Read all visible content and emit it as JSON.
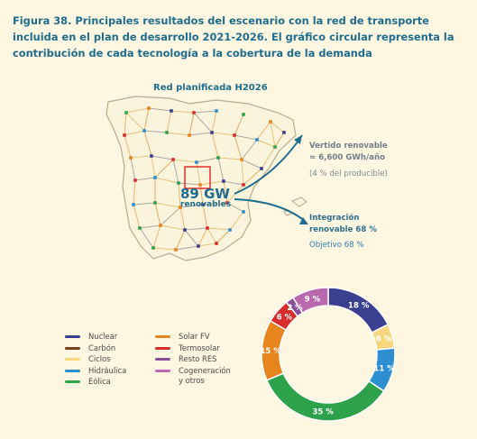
{
  "figure_title": "Figura 38. Principales resultados del escenario con la red de transporte incluida en el plan de desarrollo 2021-2026. El gráfico circular representa la contribución de cada tecnología a la cobertura de la demanda",
  "map": {
    "network_label": "Red planificada H2026",
    "renewables_value": "89 GW",
    "renewables_label": "renovables",
    "curtailment_label_line1": "Vertido renovable",
    "curtailment_label_line2": "≈ 6,600 GWh/año",
    "curtailment_pct": "(4 % del producible)",
    "integration_line1": "Integración",
    "integration_line2": "renovable 68 %",
    "target": "Objetivo 68 %"
  },
  "colors": {
    "background": "#fdf6e0",
    "title": "#1f6d8e",
    "map_land": "#fbf4dc",
    "map_border": "#b9ab8c",
    "arrow": "#1f6d8e"
  },
  "chart_data": {
    "type": "pie",
    "donut": true,
    "categories": [
      "Nuclear",
      "Carbón",
      "Ciclos",
      "Hidráulica",
      "Eólica",
      "Solar FV",
      "Termosolar",
      "Resto RES",
      "Cogeneración y otros"
    ],
    "values": [
      18,
      0,
      6,
      11,
      35,
      15,
      6,
      2,
      9
    ],
    "data_labels": [
      "18 %",
      "",
      "6 %",
      "11 %",
      "35 %",
      "15 %",
      "6 %",
      "2 %",
      "9 %"
    ],
    "colors": [
      "#3b3f8f",
      "#7a3a1c",
      "#f6d77d",
      "#2d8fcf",
      "#2ea24a",
      "#e6841d",
      "#d62d2d",
      "#8a4f9a",
      "#b969ad"
    ],
    "legend": {
      "placement": "left",
      "entries": [
        "Nuclear",
        "Carbón",
        "Ciclos",
        "Hidráulica",
        "Eólica",
        "Solar FV",
        "Termosolar",
        "Resto RES",
        "Cogeneración y otros"
      ]
    }
  }
}
